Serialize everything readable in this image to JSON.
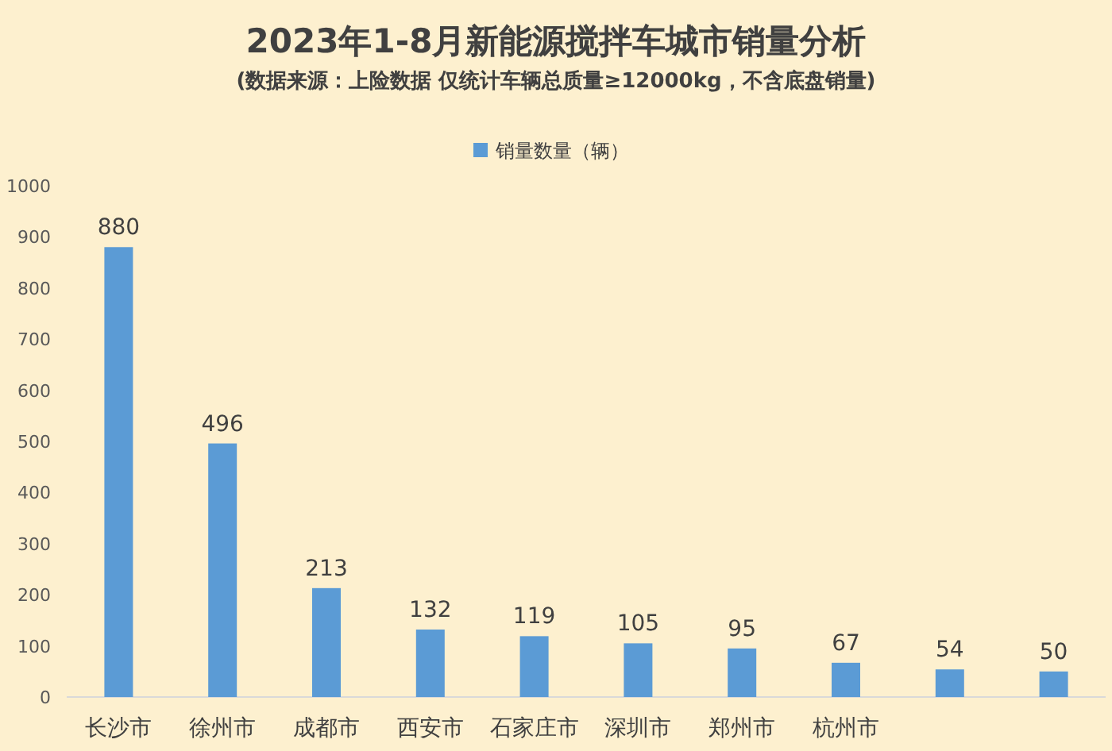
{
  "chart_data": {
    "type": "bar",
    "title": "2023年1-8月新能源搅拌车城市销量分析",
    "subtitle": "(数据来源：上险数据 仅统计车辆总质量≥12000kg，不含底盘销量)",
    "categories": [
      "长沙市",
      "徐州市",
      "成都市",
      "西安市",
      "石家庄市",
      "深圳市",
      "郑州市",
      "杭州市",
      null,
      null
    ],
    "series": [
      {
        "name": "销量数量（辆）",
        "color": "#5b9bd5",
        "values": [
          880,
          496,
          213,
          132,
          119,
          105,
          95,
          67,
          54,
          50
        ]
      }
    ],
    "ylim": [
      0,
      1000
    ],
    "yticks": [
      0,
      100,
      200,
      300,
      400,
      500,
      600,
      700,
      800,
      900,
      1000
    ],
    "grid": false,
    "legend": "top",
    "data_labels": true
  }
}
